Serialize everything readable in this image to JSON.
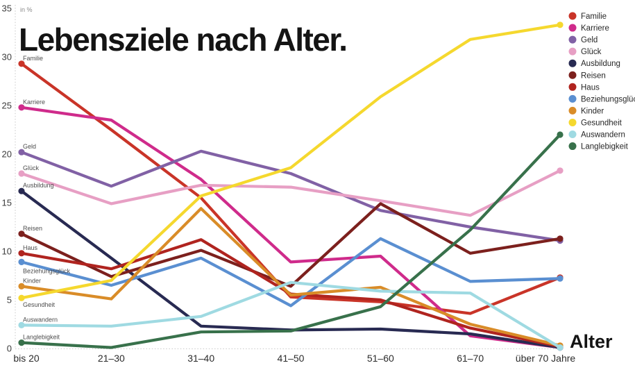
{
  "title": "Lebensziele nach Alter.",
  "y_axis_unit_label": "in %",
  "x_axis_title": "Alter",
  "chart_data": {
    "type": "line",
    "title": "Lebensziele nach Alter.",
    "xlabel": "Alter",
    "ylabel": "in %",
    "ylim": [
      0,
      35
    ],
    "y_ticks": [
      0,
      5,
      10,
      15,
      20,
      25,
      30,
      35
    ],
    "grid": "dotted left axis line and dotted zero baseline only",
    "legend_position": "top-right",
    "line_labels_at_start": true,
    "categories": [
      "bis 20",
      "21–30",
      "31–40",
      "41–50",
      "51–60",
      "61–70",
      "über 70 Jahre"
    ],
    "series": [
      {
        "name": "Familie",
        "color": "#c93428",
        "values": [
          29.3,
          22.5,
          15.5,
          5.3,
          4.8,
          3.6,
          7.3
        ]
      },
      {
        "name": "Karriere",
        "color": "#cf2b8b",
        "values": [
          24.8,
          23.5,
          17.4,
          8.9,
          9.5,
          1.3,
          0.1
        ]
      },
      {
        "name": "Geld",
        "color": "#8161a5",
        "values": [
          20.2,
          16.7,
          20.3,
          18.0,
          14.2,
          12.5,
          11.1
        ]
      },
      {
        "name": "Glück",
        "color": "#e79fc4",
        "values": [
          18.0,
          14.9,
          16.8,
          16.6,
          15.2,
          13.7,
          18.3
        ]
      },
      {
        "name": "Ausbildung",
        "color": "#282a52",
        "values": [
          16.2,
          9.3,
          2.3,
          1.9,
          2.0,
          1.5,
          0.1
        ]
      },
      {
        "name": "Reisen",
        "color": "#7c201d",
        "values": [
          11.8,
          7.4,
          10.1,
          6.4,
          14.9,
          9.8,
          11.3
        ]
      },
      {
        "name": "Haus",
        "color": "#b0241f",
        "values": [
          9.8,
          8.2,
          11.2,
          5.6,
          5.0,
          2.1,
          0.2
        ]
      },
      {
        "name": "Beziehungsglück",
        "color": "#5a8fd1",
        "values": [
          8.9,
          6.5,
          9.3,
          4.4,
          11.3,
          6.9,
          7.2
        ]
      },
      {
        "name": "Kinder",
        "color": "#d98c28",
        "values": [
          6.4,
          5.1,
          14.4,
          5.5,
          6.3,
          2.5,
          0.3
        ]
      },
      {
        "name": "Gesundheit",
        "color": "#f5d82e",
        "values": [
          5.2,
          7.0,
          15.7,
          18.6,
          25.9,
          31.8,
          33.3
        ]
      },
      {
        "name": "Auswandern",
        "color": "#9fdae2",
        "values": [
          2.4,
          2.3,
          3.3,
          6.8,
          5.9,
          5.7,
          0.1
        ]
      },
      {
        "name": "Langlebigkeit",
        "color": "#38714b",
        "values": [
          0.6,
          0.1,
          1.7,
          1.8,
          4.3,
          12.2,
          22.0
        ]
      }
    ]
  }
}
